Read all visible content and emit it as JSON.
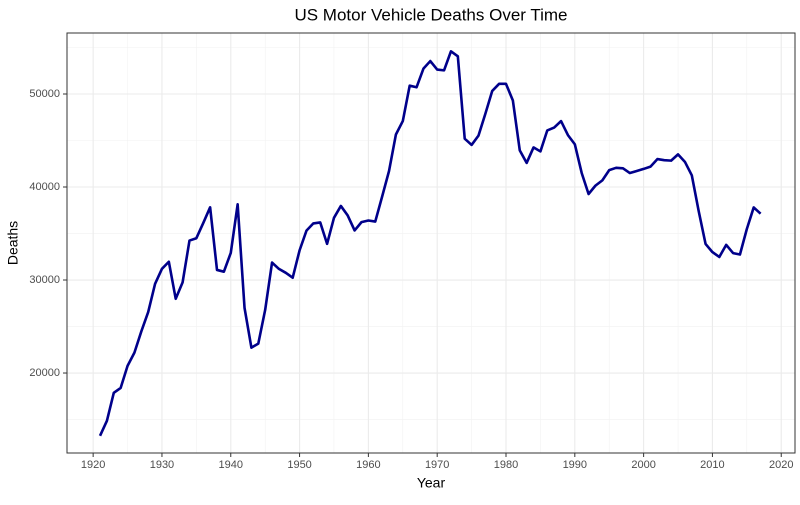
{
  "chart_data": {
    "type": "line",
    "title": "US Motor Vehicle Deaths Over Time",
    "x_label": "Year",
    "y_label": "Deaths",
    "x": [
      1921,
      1922,
      1923,
      1924,
      1925,
      1926,
      1927,
      1928,
      1929,
      1930,
      1931,
      1932,
      1933,
      1934,
      1935,
      1936,
      1937,
      1938,
      1939,
      1940,
      1941,
      1942,
      1943,
      1944,
      1945,
      1946,
      1947,
      1948,
      1949,
      1950,
      1951,
      1952,
      1953,
      1954,
      1955,
      1956,
      1957,
      1958,
      1959,
      1960,
      1961,
      1962,
      1963,
      1964,
      1965,
      1966,
      1967,
      1968,
      1969,
      1970,
      1971,
      1972,
      1973,
      1974,
      1975,
      1976,
      1977,
      1978,
      1979,
      1980,
      1981,
      1982,
      1983,
      1984,
      1985,
      1986,
      1987,
      1988,
      1989,
      1990,
      1991,
      1992,
      1993,
      1994,
      1995,
      1996,
      1997,
      1998,
      1999,
      2000,
      2001,
      2002,
      2003,
      2004,
      2005,
      2006,
      2007,
      2008,
      2009,
      2010,
      2011,
      2012,
      2013,
      2014,
      2015,
      2016,
      2017
    ],
    "series": [
      {
        "name": "Deaths",
        "color": "#00008b",
        "values": [
          13253,
          14859,
          17870,
          18400,
          20771,
          22194,
          24470,
          26557,
          29592,
          31204,
          31963,
          27979,
          29746,
          34240,
          34494,
          36126,
          37819,
          31083,
          30895,
          32914,
          38142,
          27007,
          22727,
          23165,
          26785,
          31874,
          31193,
          30775,
          30246,
          33186,
          35309,
          36088,
          36190,
          33890,
          36688,
          37965,
          36932,
          35331,
          36223,
          36399,
          36285,
          38980,
          41723,
          45645,
          47089,
          50894,
          50724,
          52725,
          53543,
          52627,
          52542,
          54589,
          54052,
          45196,
          44525,
          45523,
          47878,
          50331,
          51093,
          51091,
          49301,
          43945,
          42589,
          44257,
          43825,
          46087,
          46390,
          47087,
          45582,
          44599,
          41508,
          39250,
          40150,
          40716,
          41817,
          42065,
          42013,
          41501,
          41717,
          41945,
          42196,
          43005,
          42884,
          42836,
          43510,
          42708,
          41259,
          37423,
          33883,
          32999,
          32479,
          33782,
          32894,
          32744,
          35484,
          37806,
          37133
        ]
      }
    ],
    "xlim": [
      1916.2,
      2022
    ],
    "ylim": [
      11400,
      56560
    ],
    "xticks": [
      1920,
      1930,
      1940,
      1950,
      1960,
      1970,
      1980,
      1990,
      2000,
      2010,
      2020
    ],
    "yticks": [
      20000,
      30000,
      40000,
      50000
    ],
    "grid": true
  }
}
